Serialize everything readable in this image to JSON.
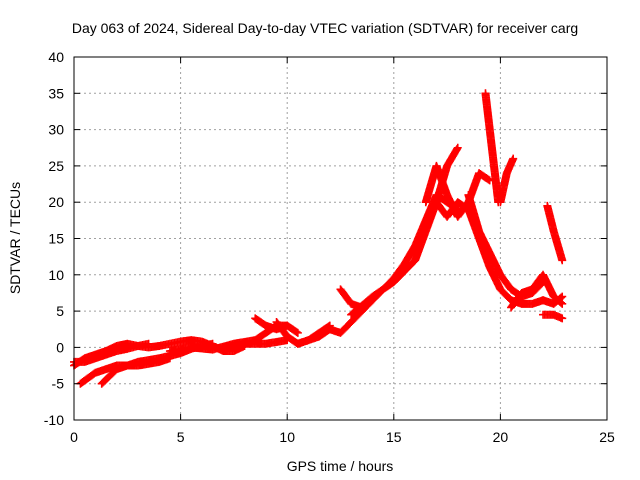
{
  "chart_data": {
    "type": "scatter",
    "title": "Day 063 of 2024, Sidereal Day-to-day VTEC variation (SDTVAR) for receiver carg",
    "xlabel": "GPS time / hours",
    "ylabel": "SDTVAR / TECUs",
    "xlim": [
      0,
      25
    ],
    "ylim": [
      -10,
      40
    ],
    "xticks": [
      0,
      5,
      10,
      15,
      20,
      25
    ],
    "yticks": [
      -10,
      -5,
      0,
      5,
      10,
      15,
      20,
      25,
      30,
      35,
      40
    ],
    "grid": true,
    "marker": "+",
    "color": "#ff0000",
    "series": [
      {
        "x": [
          0.0,
          0.5,
          1.0,
          1.5,
          2.0,
          2.5,
          3.0,
          3.5,
          4.0,
          4.5,
          5.0,
          5.5,
          6.0,
          6.5,
          7.0,
          7.5,
          8.0
        ],
        "y": [
          -2.5,
          -1.5,
          -1.0,
          -0.5,
          0.2,
          0.5,
          0.2,
          0.0,
          0.2,
          0.5,
          0.8,
          1.0,
          0.8,
          0.2,
          -0.5,
          -0.5,
          0.2
        ]
      },
      {
        "x": [
          0.0,
          0.5,
          1.0,
          1.5,
          2.0,
          2.5,
          3.0,
          3.5
        ],
        "y": [
          -2.0,
          -2.0,
          -1.5,
          -1.0,
          -0.5,
          -0.2,
          0.2,
          0.5
        ]
      },
      {
        "x": [
          0.3,
          1.0,
          2.0,
          3.0,
          4.0,
          4.5
        ],
        "y": [
          -5.0,
          -3.5,
          -2.5,
          -2.5,
          -2.0,
          -1.5
        ]
      },
      {
        "x": [
          1.3,
          2.0,
          3.0,
          4.0,
          5.0,
          5.5,
          6.0,
          6.5
        ],
        "y": [
          -5.0,
          -3.0,
          -2.0,
          -1.5,
          -0.8,
          -0.2,
          0.2,
          0.5
        ]
      },
      {
        "x": [
          4.5,
          5.5,
          6.5,
          7.5,
          8.5,
          9.0,
          9.5,
          10.0
        ],
        "y": [
          -0.5,
          0.0,
          -0.3,
          0.5,
          1.0,
          2.0,
          3.0,
          3.0
        ]
      },
      {
        "x": [
          7.0,
          8.0,
          9.0,
          10.0
        ],
        "y": [
          0.0,
          0.5,
          0.5,
          1.0
        ]
      },
      {
        "x": [
          8.5,
          9.0,
          9.5,
          10.0,
          10.5
        ],
        "y": [
          4.0,
          3.0,
          2.5,
          3.0,
          2.0
        ]
      },
      {
        "x": [
          9.5,
          10.0,
          10.5,
          11.0,
          11.5,
          12.0
        ],
        "y": [
          3.5,
          1.5,
          0.5,
          1.0,
          2.0,
          3.0
        ]
      },
      {
        "x": [
          10.5,
          11.0,
          11.5,
          12.0,
          12.5,
          13.0,
          13.5,
          14.0,
          14.5,
          15.0,
          15.5,
          16.0,
          16.5,
          17.0,
          17.5,
          18.0
        ],
        "y": [
          0.5,
          1.0,
          1.5,
          2.5,
          2.0,
          3.5,
          5.0,
          6.5,
          8.0,
          9.5,
          11.5,
          14.0,
          17.5,
          21.0,
          20.0,
          19.0
        ]
      },
      {
        "x": [
          12.5,
          13.0,
          13.5
        ],
        "y": [
          8.0,
          6.0,
          5.5
        ]
      },
      {
        "x": [
          13.0,
          14.0,
          15.0,
          16.0,
          16.5,
          17.0,
          17.5,
          18.0
        ],
        "y": [
          4.5,
          7.0,
          9.0,
          12.0,
          16.0,
          20.0,
          25.0,
          27.5
        ]
      },
      {
        "x": [
          16.5,
          17.0,
          17.5,
          18.0,
          18.5,
          19.0,
          19.5
        ],
        "y": [
          20.0,
          25.0,
          21.0,
          18.0,
          20.0,
          24.0,
          23.0
        ]
      },
      {
        "x": [
          17.0,
          17.5,
          18.0,
          18.5,
          19.0,
          19.5,
          20.0,
          20.5,
          21.0,
          21.5,
          22.0
        ],
        "y": [
          20.0,
          18.0,
          20.0,
          19.0,
          15.0,
          11.0,
          8.0,
          6.5,
          6.0,
          6.0,
          6.5
        ]
      },
      {
        "x": [
          19.3,
          19.5,
          19.7,
          19.9
        ],
        "y": [
          35.0,
          30.0,
          25.0,
          20.0
        ]
      },
      {
        "x": [
          20.0,
          20.3,
          20.6
        ],
        "y": [
          20.0,
          24.0,
          26.0
        ]
      },
      {
        "x": [
          18.5,
          19.0,
          19.5,
          20.0,
          20.5,
          21.0,
          21.5,
          22.0
        ],
        "y": [
          21.0,
          16.0,
          13.0,
          10.0,
          8.0,
          7.0,
          7.5,
          9.0
        ]
      },
      {
        "x": [
          20.5,
          21.0,
          21.5,
          22.0,
          22.5,
          22.9
        ],
        "y": [
          5.5,
          7.5,
          8.0,
          10.0,
          7.0,
          6.0
        ]
      },
      {
        "x": [
          22.0,
          22.5,
          22.9
        ],
        "y": [
          6.5,
          6.0,
          7.0
        ]
      },
      {
        "x": [
          22.0,
          22.5,
          22.9
        ],
        "y": [
          4.5,
          4.5,
          4.0
        ]
      },
      {
        "x": [
          22.2,
          22.5,
          22.9
        ],
        "y": [
          19.5,
          16.0,
          12.0
        ]
      }
    ]
  }
}
